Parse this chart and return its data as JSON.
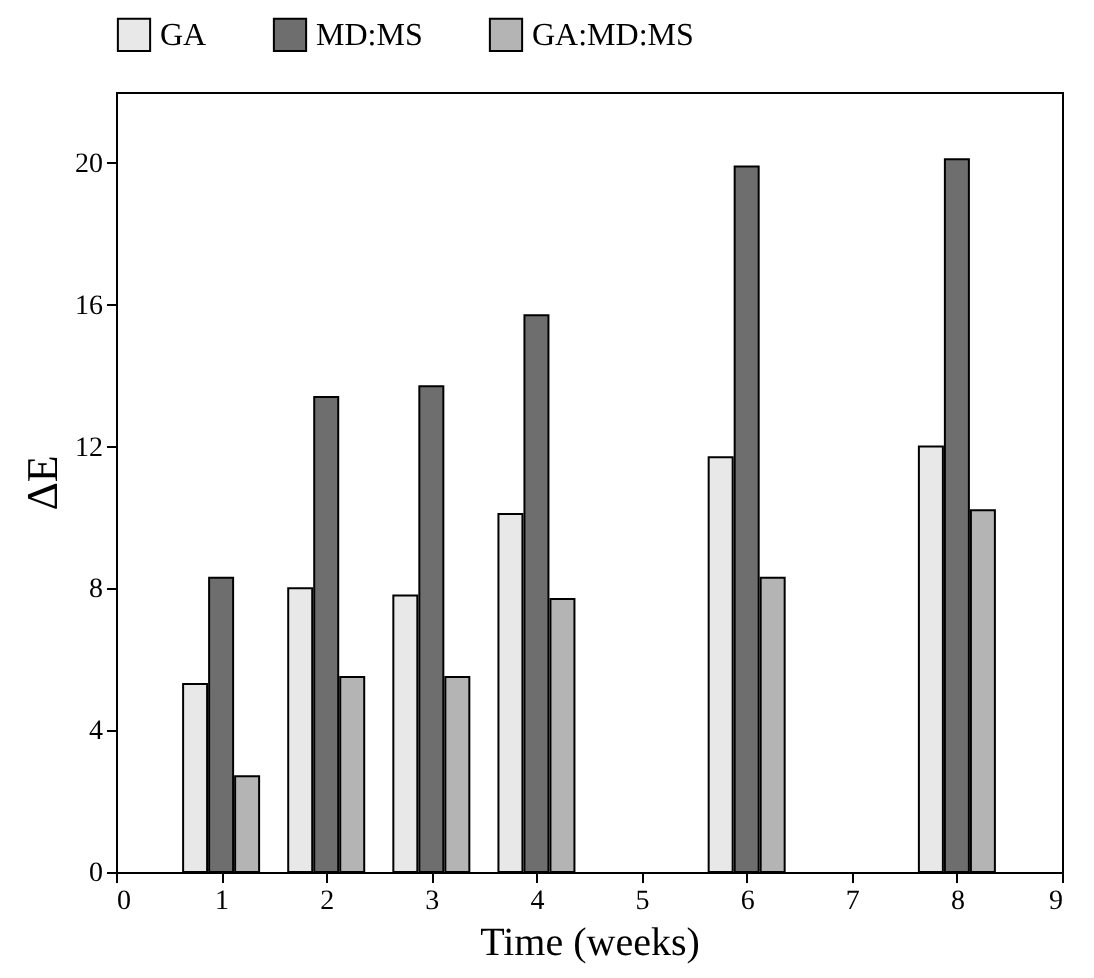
{
  "chart_data": {
    "type": "bar",
    "xlabel": "Time (weeks)",
    "ylabel": "ΔE",
    "x": [
      1,
      2,
      3,
      4,
      6,
      8
    ],
    "series": [
      {
        "name": "GA",
        "color": "#e8e8e8",
        "values": [
          5.3,
          8.0,
          7.8,
          10.1,
          11.7,
          12.0
        ]
      },
      {
        "name": "MD:MS",
        "color": "#6e6e6e",
        "values": [
          8.3,
          13.4,
          13.7,
          15.7,
          19.9,
          20.1
        ]
      },
      {
        "name": "GA:MD:MS",
        "color": "#b4b4b4",
        "values": [
          2.7,
          5.5,
          5.5,
          7.7,
          8.3,
          10.2
        ]
      }
    ],
    "xlim": [
      0,
      9
    ],
    "xticks": [
      0,
      1,
      2,
      3,
      4,
      5,
      6,
      7,
      8,
      9
    ],
    "ylim": [
      0,
      22
    ],
    "yticks": [
      0,
      4,
      8,
      12,
      16,
      20
    ],
    "grid": false,
    "legend": "top"
  }
}
